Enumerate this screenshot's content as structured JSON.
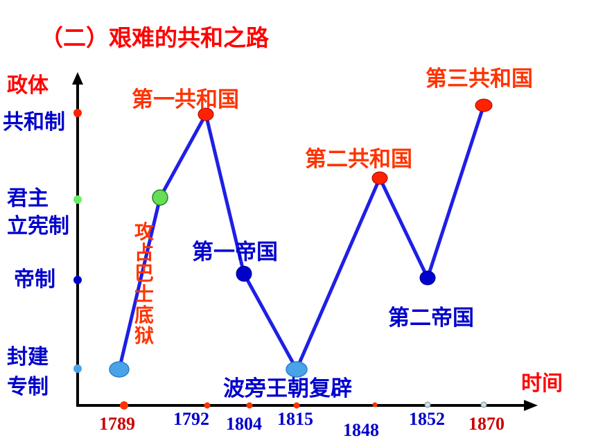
{
  "title": "（二）艰难的共和之路",
  "y_axis_label": "政体",
  "x_axis_label": "时间",
  "levels": [
    "共和制",
    "君主立宪制",
    "帝制",
    "封建专制"
  ],
  "level_lines": {
    "constitutional": [
      "君主",
      "立宪制"
    ],
    "feudal": [
      "封建",
      "专制"
    ]
  },
  "years": [
    "1789",
    "1792",
    "1804",
    "1815",
    "1848",
    "1852",
    "1870"
  ],
  "events": {
    "first_republic": "第一共和国",
    "first_empire": "第一帝国",
    "restoration": "波旁王朝复辟",
    "second_republic": "第二共和国",
    "second_empire": "第二帝国",
    "third_republic": "第三共和国",
    "bastille": "攻占巴士底狱"
  },
  "colors": {
    "line": "#1f1fe6",
    "republic": "#ff0000",
    "constitutional": "#66dd55",
    "empire": "#0000cc",
    "feudal": "#4aa3e8",
    "axis": "#000000",
    "label_red": "#ff3300",
    "label_blue": "#0000cc"
  }
}
